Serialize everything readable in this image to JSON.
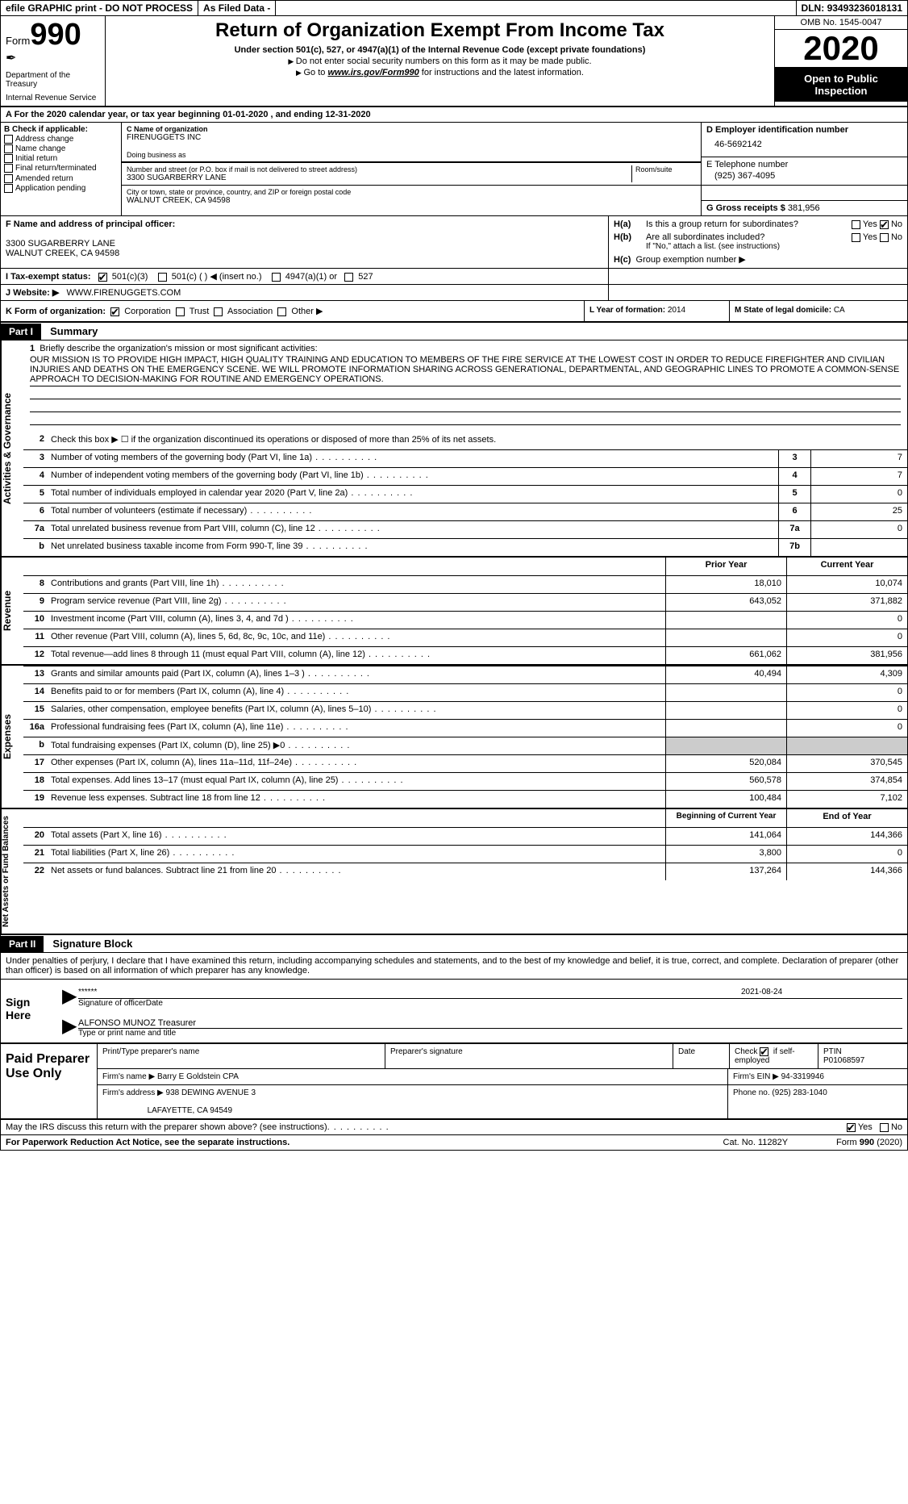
{
  "topbar": {
    "efile": "efile GRAPHIC print - DO NOT PROCESS",
    "asfiled": "As Filed Data -",
    "dln_lbl": "DLN:",
    "dln": "93493236018131"
  },
  "header": {
    "form_prefix": "Form",
    "form_no": "990",
    "dept1": "Department of the Treasury",
    "dept2": "Internal Revenue Service",
    "title": "Return of Organization Exempt From Income Tax",
    "subtitle": "Under section 501(c), 527, or 4947(a)(1) of the Internal Revenue Code (except private foundations)",
    "note1": "Do not enter social security numbers on this form as it may be made public.",
    "note2_pre": "Go to ",
    "note2_link": "www.irs.gov/Form990",
    "note2_post": " for instructions and the latest information.",
    "omb": "OMB No. 1545-0047",
    "year": "2020",
    "open": "Open to Public Inspection"
  },
  "row_a": "A  For the 2020 calendar year, or tax year beginning 01-01-2020  , and ending 12-31-2020",
  "col_b": {
    "hdr": "B Check if applicable:",
    "items": [
      "Address change",
      "Name change",
      "Initial return",
      "Final return/terminated",
      "Amended return",
      "Application pending"
    ]
  },
  "col_c": {
    "name_lbl": "C Name of organization",
    "name": "FIRENUGGETS INC",
    "dba_lbl": "Doing business as",
    "dba": "",
    "street_lbl": "Number and street (or P.O. box if mail is not delivered to street address)",
    "room_lbl": "Room/suite",
    "street": "3300 SUGARBERRY LANE",
    "city_lbl": "City or town, state or province, country, and ZIP or foreign postal code",
    "city": "WALNUT CREEK, CA  94598"
  },
  "col_d": {
    "ein_lbl": "D Employer identification number",
    "ein": "46-5692142",
    "tel_lbl": "E Telephone number",
    "tel": "(925) 367-4095",
    "gross_lbl": "G Gross receipts $",
    "gross": "381,956"
  },
  "col_f": {
    "lbl": "F  Name and address of principal officer:",
    "l1": "3300 SUGARBERRY LANE",
    "l2": "WALNUT CREEK, CA  94598"
  },
  "col_h": {
    "a_lbl": "H(a)",
    "a_txt": "Is this a group return for subordinates?",
    "b_lbl": "H(b)",
    "b_txt": "Are all subordinates included?",
    "b_note": "If \"No,\" attach a list. (see instructions)",
    "c_lbl": "H(c)",
    "c_txt": "Group exemption number ▶",
    "yes": "Yes",
    "no": "No"
  },
  "row_i": {
    "lbl": "I  Tax-exempt status:",
    "o1": "501(c)(3)",
    "o2": "501(c) (  ) ◀ (insert no.)",
    "o3": "4947(a)(1) or",
    "o4": "527"
  },
  "row_j": {
    "lbl": "J  Website: ▶",
    "val": "WWW.FIRENUGGETS.COM"
  },
  "row_k": {
    "lbl": "K Form of organization:",
    "o1": "Corporation",
    "o2": "Trust",
    "o3": "Association",
    "o4": "Other ▶"
  },
  "row_l": {
    "lbl": "L Year of formation:",
    "val": "2014"
  },
  "row_m": {
    "lbl": "M State of legal domicile:",
    "val": "CA"
  },
  "parts": {
    "p1": "Part I",
    "p1t": "Summary",
    "p2": "Part II",
    "p2t": "Signature Block"
  },
  "vtabs": {
    "ag": "Activities & Governance",
    "rev": "Revenue",
    "exp": "Expenses",
    "na": "Net Assets or Fund Balances"
  },
  "summary": {
    "l1_lbl": "Briefly describe the organization's mission or most significant activities:",
    "l1_txt": "OUR MISSION IS TO PROVIDE HIGH IMPACT, HIGH QUALITY TRAINING AND EDUCATION TO MEMBERS OF THE FIRE SERVICE AT THE LOWEST COST IN ORDER TO REDUCE FIREFIGHTER AND CIVILIAN INJURIES AND DEATHS ON THE EMERGENCY SCENE. WE WILL PROMOTE INFORMATION SHARING ACROSS GENERATIONAL, DEPARTMENTAL, AND GEOGRAPHIC LINES TO PROMOTE A COMMON-SENSE APPROACH TO DECISION-MAKING FOR ROUTINE AND EMERGENCY OPERATIONS.",
    "l2": "Check this box ▶ ☐  if the organization discontinued its operations or disposed of more than 25% of its net assets.",
    "rows_ag": [
      {
        "n": "3",
        "t": "Number of voting members of the governing body (Part VI, line 1a)",
        "bn": "3",
        "bv": "7"
      },
      {
        "n": "4",
        "t": "Number of independent voting members of the governing body (Part VI, line 1b)",
        "bn": "4",
        "bv": "7"
      },
      {
        "n": "5",
        "t": "Total number of individuals employed in calendar year 2020 (Part V, line 2a)",
        "bn": "5",
        "bv": "0"
      },
      {
        "n": "6",
        "t": "Total number of volunteers (estimate if necessary)",
        "bn": "6",
        "bv": "25"
      },
      {
        "n": "7a",
        "t": "Total unrelated business revenue from Part VIII, column (C), line 12",
        "bn": "7a",
        "bv": "0"
      },
      {
        "n": "b",
        "t": "Net unrelated business taxable income from Form 990-T, line 39",
        "bn": "7b",
        "bv": ""
      }
    ],
    "col_prior": "Prior Year",
    "col_curr": "Current Year",
    "rows_rev": [
      {
        "n": "8",
        "t": "Contributions and grants (Part VIII, line 1h)",
        "p": "18,010",
        "c": "10,074"
      },
      {
        "n": "9",
        "t": "Program service revenue (Part VIII, line 2g)",
        "p": "643,052",
        "c": "371,882"
      },
      {
        "n": "10",
        "t": "Investment income (Part VIII, column (A), lines 3, 4, and 7d )",
        "p": "",
        "c": "0"
      },
      {
        "n": "11",
        "t": "Other revenue (Part VIII, column (A), lines 5, 6d, 8c, 9c, 10c, and 11e)",
        "p": "",
        "c": "0"
      },
      {
        "n": "12",
        "t": "Total revenue—add lines 8 through 11 (must equal Part VIII, column (A), line 12)",
        "p": "661,062",
        "c": "381,956"
      }
    ],
    "rows_exp": [
      {
        "n": "13",
        "t": "Grants and similar amounts paid (Part IX, column (A), lines 1–3 )",
        "p": "40,494",
        "c": "4,309"
      },
      {
        "n": "14",
        "t": "Benefits paid to or for members (Part IX, column (A), line 4)",
        "p": "",
        "c": "0"
      },
      {
        "n": "15",
        "t": "Salaries, other compensation, employee benefits (Part IX, column (A), lines 5–10)",
        "p": "",
        "c": "0"
      },
      {
        "n": "16a",
        "t": "Professional fundraising fees (Part IX, column (A), line 11e)",
        "p": "",
        "c": "0"
      },
      {
        "n": "b",
        "t": "Total fundraising expenses (Part IX, column (D), line 25) ▶0",
        "p": "GRAY",
        "c": "GRAY"
      },
      {
        "n": "17",
        "t": "Other expenses (Part IX, column (A), lines 11a–11d, 11f–24e)",
        "p": "520,084",
        "c": "370,545"
      },
      {
        "n": "18",
        "t": "Total expenses. Add lines 13–17 (must equal Part IX, column (A), line 25)",
        "p": "560,578",
        "c": "374,854"
      },
      {
        "n": "19",
        "t": "Revenue less expenses. Subtract line 18 from line 12",
        "p": "100,484",
        "c": "7,102"
      }
    ],
    "col_begin": "Beginning of Current Year",
    "col_end": "End of Year",
    "rows_na": [
      {
        "n": "20",
        "t": "Total assets (Part X, line 16)",
        "p": "141,064",
        "c": "144,366"
      },
      {
        "n": "21",
        "t": "Total liabilities (Part X, line 26)",
        "p": "3,800",
        "c": "0"
      },
      {
        "n": "22",
        "t": "Net assets or fund balances. Subtract line 21 from line 20",
        "p": "137,264",
        "c": "144,366"
      }
    ]
  },
  "sig": {
    "decl": "Under penalties of perjury, I declare that I have examined this return, including accompanying schedules and statements, and to the best of my knowledge and belief, it is true, correct, and complete. Declaration of preparer (other than officer) is based on all information of which preparer has any knowledge.",
    "sign_here": "Sign Here",
    "stars": "******",
    "date": "2021-08-24",
    "sig_lbl": "Signature of officer",
    "date_lbl": "Date",
    "name": "ALFONSO MUNOZ Treasurer",
    "name_lbl": "Type or print name and title"
  },
  "prep": {
    "lbl": "Paid Preparer Use Only",
    "h1": "Print/Type preparer's name",
    "h2": "Preparer's signature",
    "h3": "Date",
    "h4_pre": "Check",
    "h4_post": "if self-employed",
    "h5": "PTIN",
    "ptin": "P01068597",
    "firm_name_lbl": "Firm's name   ▶",
    "firm_name": "Barry E Goldstein CPA",
    "firm_ein_lbl": "Firm's EIN ▶",
    "firm_ein": "94-3319946",
    "firm_addr_lbl": "Firm's address ▶",
    "firm_addr1": "938 DEWING AVENUE 3",
    "firm_addr2": "LAFAYETTE, CA  94549",
    "phone_lbl": "Phone no.",
    "phone": "(925) 283-1040"
  },
  "footer": {
    "discuss": "May the IRS discuss this return with the preparer shown above? (see instructions)",
    "yes": "Yes",
    "no": "No",
    "pra": "For Paperwork Reduction Act Notice, see the separate instructions.",
    "cat": "Cat. No. 11282Y",
    "form": "Form 990 (2020)"
  }
}
